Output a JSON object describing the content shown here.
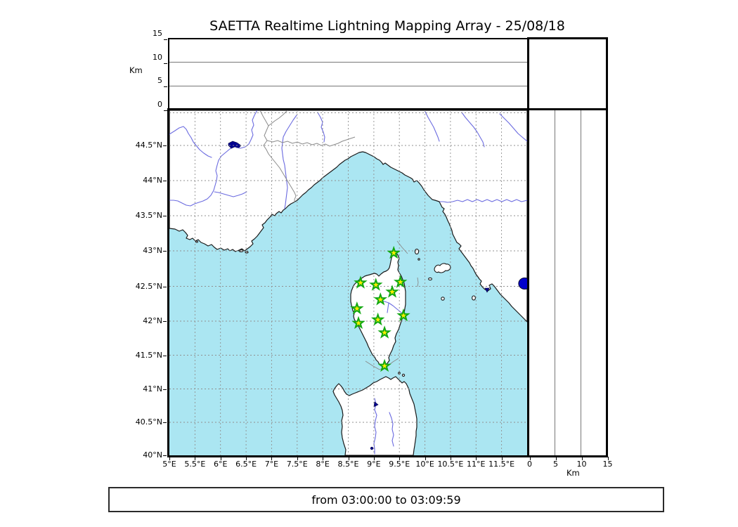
{
  "title": "SAETTA Realtime Lightning Mapping Array - 25/08/18",
  "footer": {
    "time_range": "from 03:00:00 to 03:09:59"
  },
  "axes": {
    "top_panel": {
      "unit_label": "Km",
      "tick_labels": [
        "15",
        "10",
        "5",
        "0"
      ]
    },
    "right_panel": {
      "unit_label": "Km",
      "tick_labels": [
        "0",
        "5",
        "10",
        "15"
      ]
    },
    "map": {
      "lat_tick_labels": [
        "44.5°N",
        "44°N",
        "43.5°N",
        "43°N",
        "42.5°N",
        "42°N",
        "41.5°N",
        "41°N",
        "40.5°N",
        "40°N"
      ],
      "lon_tick_labels": [
        "5°E",
        "5.5°E",
        "6°E",
        "6.5°E",
        "7°E",
        "7.5°E",
        "8°E",
        "8.5°E",
        "9°E",
        "9.5°E",
        "10°E",
        "10.5°E",
        "11°E",
        "11.5°E"
      ]
    }
  },
  "colors": {
    "sea": "#abe6f2",
    "land": "#ffffff",
    "coast": "#1a1a1a",
    "river": "#6b6be0",
    "lake": "#000090",
    "border_line": "#8a8a8a",
    "grid": "#909090",
    "station_fill": "#ffee00",
    "station_edge": "#12a812",
    "event": "#0000cc"
  },
  "chart_data": {
    "type": "scatter",
    "title": "SAETTA Realtime Lightning Mapping Array - 25/08/18",
    "time_range": "from 03:00:00 to 03:09:59",
    "map_extent": {
      "lon": [
        5,
        12
      ],
      "lat": [
        40,
        45
      ]
    },
    "altitude_axis": {
      "label": "Km",
      "range": [
        0,
        15
      ],
      "ticks": [
        0,
        5,
        10,
        15
      ],
      "gridlines": [
        5,
        10
      ]
    },
    "grid": "on",
    "stations": [
      {
        "lon": 9.39,
        "lat": 42.97
      },
      {
        "lon": 8.74,
        "lat": 42.55
      },
      {
        "lon": 9.04,
        "lat": 42.52
      },
      {
        "lon": 9.52,
        "lat": 42.56
      },
      {
        "lon": 9.36,
        "lat": 42.42
      },
      {
        "lon": 9.13,
        "lat": 42.31
      },
      {
        "lon": 8.67,
        "lat": 42.18
      },
      {
        "lon": 9.58,
        "lat": 42.08
      },
      {
        "lon": 9.08,
        "lat": 42.02
      },
      {
        "lon": 8.7,
        "lat": 41.97
      },
      {
        "lon": 9.21,
        "lat": 41.83
      },
      {
        "lon": 9.21,
        "lat": 41.34
      }
    ],
    "events": [
      {
        "lon": 11.95,
        "lat": 42.54
      }
    ]
  }
}
